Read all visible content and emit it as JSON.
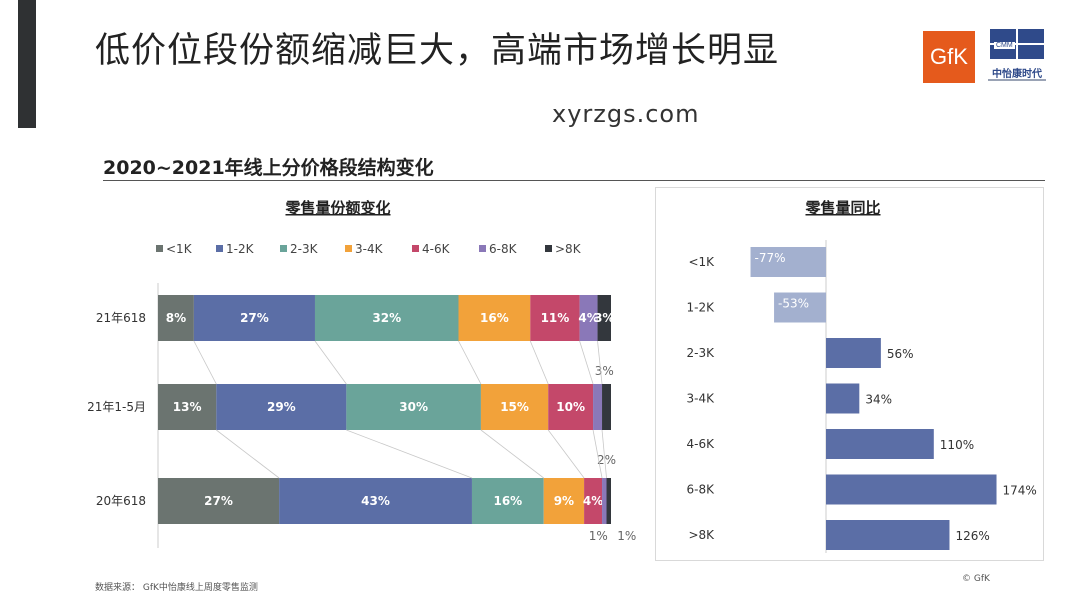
{
  "page": {
    "title": "低价位段份额缩减巨大，高端市场增长明显",
    "watermark": "xyrzgs.com",
    "subtitle": "2020~2021年线上分价格段结构变化",
    "source": "数据来源： GfK中怡康线上周度零售监测",
    "copyright": "© GfK",
    "logos": {
      "gfk": "GfK",
      "cmm_abbr": "CMM",
      "cmm_name": "中怡康时代"
    }
  },
  "chart_data": [
    {
      "type": "bar",
      "orientation": "horizontal",
      "stacked": true,
      "normalized": true,
      "title": "零售量份额变化",
      "categories": [
        "21年618",
        "21年1-5月",
        "20年618"
      ],
      "series": [
        {
          "name": "<1K",
          "color": "#6b7470",
          "values": [
            8,
            13,
            27
          ],
          "labels": [
            "8%",
            "13%",
            "27%"
          ]
        },
        {
          "name": "1-2K",
          "color": "#5b6ea6",
          "values": [
            27,
            29,
            43
          ],
          "labels": [
            "27%",
            "29%",
            "43%"
          ]
        },
        {
          "name": "2-3K",
          "color": "#6aa49a",
          "values": [
            32,
            30,
            16
          ],
          "labels": [
            "32%",
            "30%",
            "16%"
          ]
        },
        {
          "name": "3-4K",
          "color": "#f2a23a",
          "values": [
            16,
            15,
            9
          ],
          "labels": [
            "16%",
            "15%",
            "9%"
          ]
        },
        {
          "name": "4-6K",
          "color": "#c4486a",
          "values": [
            11,
            10,
            4
          ],
          "labels": [
            "11%",
            "10%",
            "4%"
          ]
        },
        {
          "name": "6-8K",
          "color": "#8a78b8",
          "values": [
            4,
            2,
            1
          ],
          "labels": [
            "4%",
            "2%",
            "1%"
          ]
        },
        {
          "name": ">8K",
          "color": "#33373d",
          "values": [
            3,
            2,
            1
          ],
          "labels": [
            "3%",
            "2%",
            "1%"
          ]
        }
      ],
      "legend": "top"
    },
    {
      "type": "bar",
      "orientation": "horizontal",
      "title": "零售量同比",
      "categories": [
        "<1K",
        "1-2K",
        "2-3K",
        "3-4K",
        "4-6K",
        "6-8K",
        ">8K"
      ],
      "values": [
        -77,
        -53,
        56,
        34,
        110,
        174,
        126
      ],
      "labels": [
        "-77%",
        "-53%",
        "56%",
        "34%",
        "110%",
        "174%",
        "126%"
      ],
      "colors": {
        "positive": "#5b6ea6",
        "negative": "#a3b0cf"
      }
    }
  ]
}
